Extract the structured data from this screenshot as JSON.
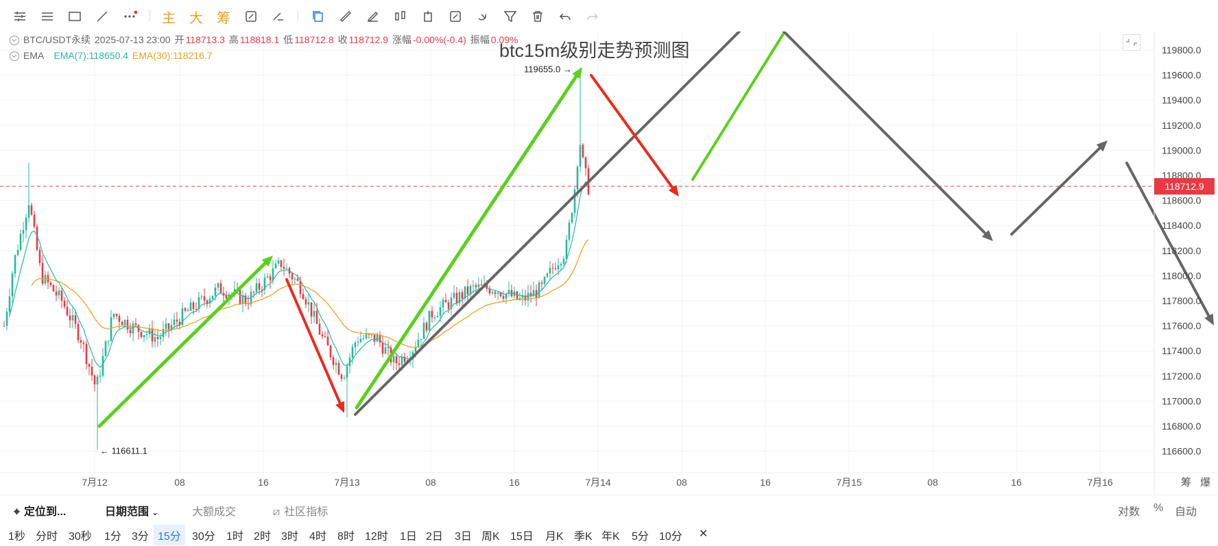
{
  "toolbar": {
    "tools": [
      "menu-icon",
      "lines-icon",
      "rectangle-icon",
      "trendline-icon",
      "more-icon"
    ],
    "main_label": "主",
    "big_label": "大",
    "chip_label": "筹",
    "tools2": [
      "refresh-icon",
      "draw-icon"
    ],
    "tools3": [
      "copy-icon",
      "ruler-icon",
      "pen-icon",
      "candles-icon",
      "timer-icon",
      "edit-icon",
      "magnet-icon",
      "filter-icon",
      "trash-icon",
      "undo-icon",
      "redo-icon"
    ]
  },
  "legend": {
    "symbol": "BTC/USDT永续",
    "datetime": "2025-07-13 23:00",
    "open_label": "开",
    "open": "118713.3",
    "high_label": "高",
    "high": "118818.1",
    "low_label": "低",
    "low": "118712.8",
    "close_label": "收",
    "close": "118712.9",
    "change_label": "涨幅",
    "change": "-0.00%(-0.4)",
    "amp_label": "振幅",
    "amp": "0.09%",
    "ema_label": "EMA",
    "ema7": "EMA(7):118650.4",
    "ema30": "EMA(30):118216.7"
  },
  "chart_title": "btc15m级别走势预测图",
  "chart_data": {
    "type": "candlestick",
    "y_axis_ticks": [
      "119800.0",
      "119600.0",
      "119400.0",
      "119200.0",
      "119000.0",
      "118800.0",
      "118600.0",
      "118400.0",
      "118200.0",
      "118000.0",
      "117800.0",
      "117600.0",
      "117400.0",
      "117200.0",
      "117000.0",
      "116800.0",
      "116600.0"
    ],
    "x_axis_ticks": [
      "7月12",
      "08",
      "16",
      "7月13",
      "08",
      "16",
      "7月14",
      "08",
      "16",
      "7月15",
      "08",
      "16",
      "7月16"
    ],
    "ylim": [
      116500,
      119950
    ],
    "last_price": "118712.9",
    "last_price_value": 118712.9,
    "max_label": "119655.0",
    "max_value": 119655.0,
    "min_label": "116611.1",
    "min_value": 116611.1,
    "colors": {
      "up": "#26b8a0",
      "down": "#ea3943",
      "ema7": "#26b8a0",
      "ema30": "#f0a01c",
      "last_price": "#ea3943"
    }
  },
  "axis_corner": [
    "筹",
    "爆"
  ],
  "bottom": {
    "locate": "定位到...",
    "date_range": "日期范围",
    "large_trades": "大额成交",
    "community": "社区指标",
    "log": "对数",
    "pct": "%",
    "auto": "自动"
  },
  "intervals": [
    "1秒",
    "分时",
    "30秒",
    "1分",
    "3分",
    "15分",
    "30分",
    "1时",
    "2时",
    "3时",
    "4时",
    "8时",
    "12时",
    "1日",
    "2日",
    "3日",
    "周K",
    "15日",
    "月K",
    "季K",
    "年K",
    "5分",
    "10分"
  ],
  "active_interval": "15分",
  "close_interval": "✕"
}
